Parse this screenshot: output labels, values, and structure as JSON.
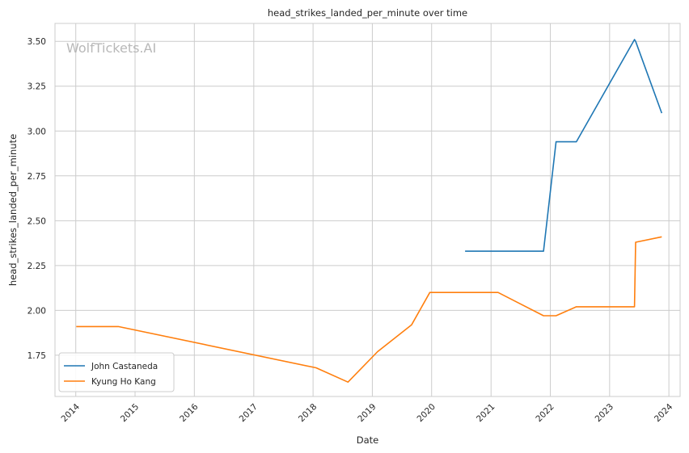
{
  "chart_data": {
    "type": "line",
    "title": "head_strikes_landed_per_minute over time",
    "xlabel": "Date",
    "ylabel": "head_strikes_landed_per_minute",
    "watermark": "WolfTickets.AI",
    "x_ticks": [
      "2014",
      "2015",
      "2016",
      "2017",
      "2018",
      "2019",
      "2020",
      "2021",
      "2022",
      "2023",
      "2024"
    ],
    "y_ticks": [
      "1.75",
      "2.00",
      "2.25",
      "2.50",
      "2.75",
      "3.00",
      "3.25",
      "3.50"
    ],
    "xlim": [
      "2013-08-26",
      "2024-03-10"
    ],
    "ylim": [
      1.52,
      3.6
    ],
    "grid": true,
    "legend_position": "lower-left",
    "series": [
      {
        "name": "John Castaneda",
        "color": "#1f77b4",
        "points": [
          {
            "x": "2020-07-25",
            "y": 2.33
          },
          {
            "x": "2021-11-20",
            "y": 2.33
          },
          {
            "x": "2022-02-05",
            "y": 2.94
          },
          {
            "x": "2022-06-10",
            "y": 2.94
          },
          {
            "x": "2023-06-03",
            "y": 3.51
          },
          {
            "x": "2023-06-10",
            "y": 3.5
          },
          {
            "x": "2023-11-18",
            "y": 3.1
          }
        ]
      },
      {
        "name": "Kyung Ho Kang",
        "color": "#ff7f0e",
        "points": [
          {
            "x": "2014-01-04",
            "y": 1.91
          },
          {
            "x": "2014-09-20",
            "y": 1.91
          },
          {
            "x": "2018-01-20",
            "y": 1.68
          },
          {
            "x": "2018-08-04",
            "y": 1.6
          },
          {
            "x": "2019-02-02",
            "y": 1.77
          },
          {
            "x": "2019-08-31",
            "y": 1.92
          },
          {
            "x": "2019-12-21",
            "y": 2.1
          },
          {
            "x": "2021-02-13",
            "y": 2.1
          },
          {
            "x": "2021-11-20",
            "y": 1.97
          },
          {
            "x": "2022-02-05",
            "y": 1.97
          },
          {
            "x": "2022-06-10",
            "y": 2.02
          },
          {
            "x": "2023-06-03",
            "y": 2.02
          },
          {
            "x": "2023-06-10",
            "y": 2.38
          },
          {
            "x": "2023-11-18",
            "y": 2.41
          }
        ]
      }
    ]
  }
}
